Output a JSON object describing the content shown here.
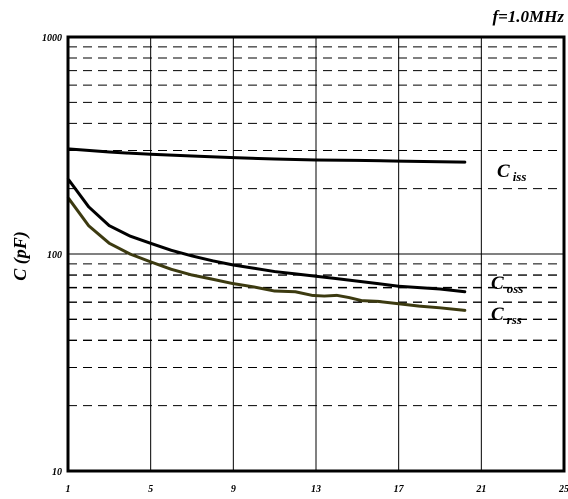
{
  "chart_data": {
    "type": "line",
    "title": "f=1.0MHz",
    "xlabel": "",
    "ylabel": "C (pF)",
    "yscale": "log",
    "xlim": [
      1,
      25
    ],
    "ylim": [
      10,
      1000
    ],
    "xticks": [
      "1",
      "5",
      "9",
      "13",
      "17",
      "21",
      "25"
    ],
    "yticks": [
      "10",
      "100",
      "1000"
    ],
    "grid": true,
    "series": [
      {
        "name": "Ciss",
        "name_main": "C",
        "name_sub": "iss",
        "color": "#000000",
        "points": [
          [
            1,
            305
          ],
          [
            3,
            295
          ],
          [
            5,
            288
          ],
          [
            7,
            283
          ],
          [
            9,
            278
          ],
          [
            11,
            274
          ],
          [
            13,
            271
          ],
          [
            15,
            270
          ],
          [
            17,
            268
          ],
          [
            19,
            266
          ],
          [
            20.2,
            265
          ]
        ]
      },
      {
        "name": "Coss",
        "name_main": "C",
        "name_sub": "oss",
        "color": "#000000",
        "points": [
          [
            1,
            222
          ],
          [
            2,
            165
          ],
          [
            3,
            135
          ],
          [
            4,
            121
          ],
          [
            5,
            112
          ],
          [
            6,
            104
          ],
          [
            7,
            98
          ],
          [
            8,
            93
          ],
          [
            9,
            89
          ],
          [
            10,
            86
          ],
          [
            11,
            83
          ],
          [
            12,
            81
          ],
          [
            13,
            79
          ],
          [
            14,
            77
          ],
          [
            15,
            75
          ],
          [
            16,
            73
          ],
          [
            17,
            71
          ],
          [
            18,
            70
          ],
          [
            19,
            69
          ],
          [
            20.2,
            67
          ]
        ]
      },
      {
        "name": "Crss",
        "name_main": "C",
        "name_sub": "rss",
        "color": "#3c3a10",
        "points": [
          [
            1,
            182
          ],
          [
            2,
            135
          ],
          [
            3,
            112
          ],
          [
            4,
            100
          ],
          [
            5,
            92
          ],
          [
            6,
            85
          ],
          [
            7,
            80
          ],
          [
            8,
            76.5
          ],
          [
            9,
            73
          ],
          [
            10,
            70.5
          ],
          [
            11,
            67.5
          ],
          [
            12,
            67
          ],
          [
            12.8,
            64.5
          ],
          [
            13.4,
            64
          ],
          [
            14,
            64.5
          ],
          [
            14.6,
            63
          ],
          [
            15.2,
            61
          ],
          [
            16,
            60.5
          ],
          [
            17,
            59
          ],
          [
            18,
            57.5
          ],
          [
            19,
            56.5
          ],
          [
            20.2,
            55
          ]
        ]
      }
    ]
  }
}
